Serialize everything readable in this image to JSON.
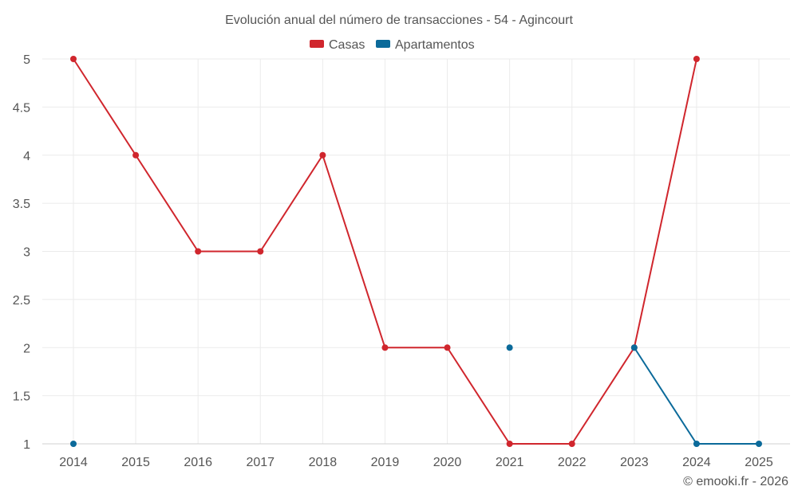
{
  "chart_data": {
    "type": "line",
    "title": "Evolución anual del número de transacciones - 54 - Agincourt",
    "categories": [
      "2014",
      "2015",
      "2016",
      "2017",
      "2018",
      "2019",
      "2020",
      "2021",
      "2022",
      "2023",
      "2024",
      "2025"
    ],
    "series": [
      {
        "name": "Casas",
        "color": "#d0262d",
        "values": [
          5,
          4,
          3,
          3,
          4,
          2,
          2,
          1,
          1,
          2,
          5,
          null
        ]
      },
      {
        "name": "Apartamentos",
        "color": "#0b6a9a",
        "values": [
          1,
          null,
          null,
          null,
          null,
          null,
          null,
          2,
          null,
          2,
          1,
          1
        ]
      }
    ],
    "ylim": [
      1,
      5
    ],
    "yticks": [
      1,
      1.5,
      2,
      2.5,
      3,
      3.5,
      4,
      4.5,
      5
    ],
    "ytick_labels": [
      "1",
      "1.5",
      "2",
      "2.5",
      "3",
      "3.5",
      "4",
      "4.5",
      "5"
    ],
    "grid": true,
    "legend_position": "top-center",
    "credit": "© emooki.fr - 2026"
  }
}
